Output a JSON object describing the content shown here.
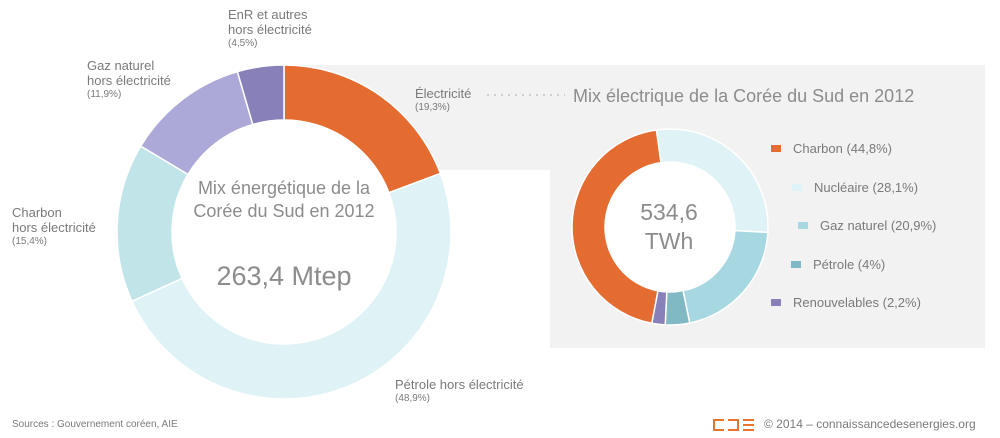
{
  "chart_data": [
    {
      "type": "pie",
      "variant": "donut",
      "title": "Mix énergétique de la Corée du Sud en 2012",
      "total_label": "263,4 Mtep",
      "slices": [
        {
          "name": "Électricité",
          "value": 19.3,
          "label": "Électricité",
          "pct_label": "(19,3%)",
          "color": "#e46c31"
        },
        {
          "name": "Pétrole hors électricité",
          "value": 48.9,
          "label": "Pétrole hors électricité",
          "pct_label": "(48,9%)",
          "color": "#dff2f6"
        },
        {
          "name": "Charbon hors électricité",
          "value": 15.4,
          "label": "Charbon\nhors électricité",
          "pct_label": "(15,4%)",
          "color": "#c1e4e9"
        },
        {
          "name": "Gaz naturel hors électricité",
          "value": 11.9,
          "label": "Gaz naturel\nhors électricité",
          "pct_label": "(11,9%)",
          "color": "#aca8d7"
        },
        {
          "name": "EnR et autres hors électricité",
          "value": 4.5,
          "label": "EnR et autres\nhors électricité",
          "pct_label": "(4,5%)",
          "color": "#8780b9"
        }
      ]
    },
    {
      "type": "pie",
      "variant": "donut",
      "title": "Mix électrique de la Corée du Sud en 2012",
      "total_value": "534,6",
      "total_unit": "TWh",
      "legend_position": "right",
      "slices": [
        {
          "name": "Charbon",
          "value": 44.8,
          "label": "Charbon (44,8%)",
          "color": "#e46c31"
        },
        {
          "name": "Nucléaire",
          "value": 28.1,
          "label": "Nucléaire (28,1%)",
          "color": "#dff2f6"
        },
        {
          "name": "Gaz naturel",
          "value": 20.9,
          "label": "Gaz naturel (20,9%)",
          "color": "#a7d8e2"
        },
        {
          "name": "Pétrole",
          "value": 4,
          "label": "Pétrole (4%)",
          "color": "#80b8c3"
        },
        {
          "name": "Renouvelables",
          "value": 2.2,
          "label": "Renouvelables (2,2%)",
          "color": "#8780b9"
        }
      ]
    }
  ],
  "footer": {
    "sources": "Sources : Gouvernement coréen, AIE",
    "copyright": "© 2014 – connaissancedesenergies.org",
    "logo_text": "CDE"
  }
}
